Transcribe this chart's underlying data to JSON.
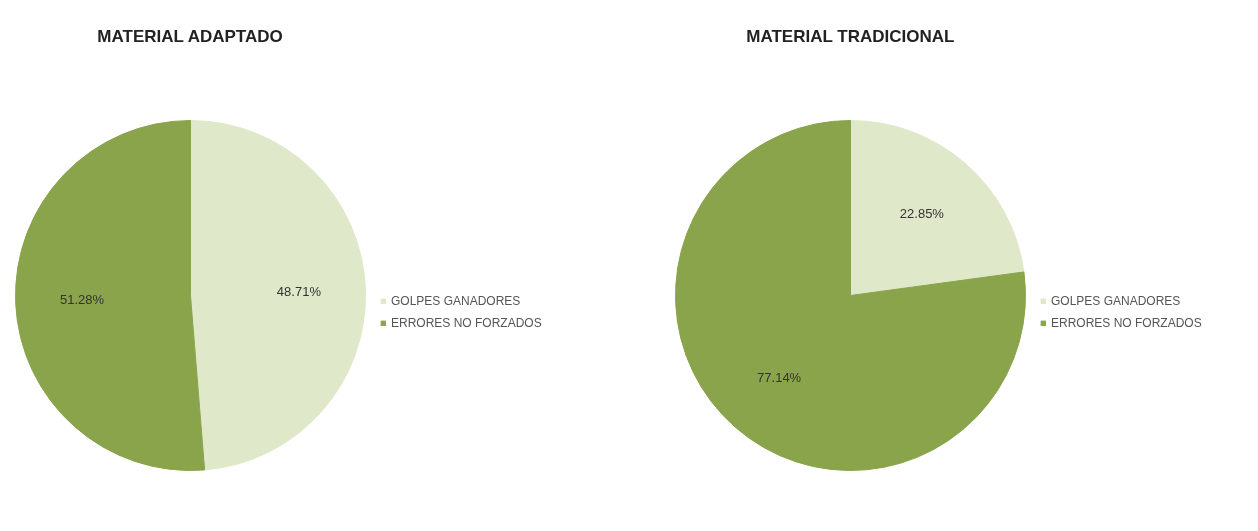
{
  "chart_data": [
    {
      "type": "pie",
      "title": "MATERIAL ADAPTADO",
      "categories": [
        "GOLPES GANADORES",
        "ERRORES NO FORZADOS"
      ],
      "values": [
        48.71,
        51.28
      ],
      "colors": [
        "#dfe8c8",
        "#8aa44c"
      ],
      "value_labels": [
        "48.71%",
        "51.28%"
      ],
      "data_labels": true,
      "legend": "right"
    },
    {
      "type": "pie",
      "title": "MATERIAL TRADICIONAL",
      "categories": [
        "GOLPES GANADORES",
        "ERRORES NO FORZADOS"
      ],
      "values": [
        22.85,
        77.14
      ],
      "colors": [
        "#dfe8c8",
        "#8aa44c"
      ],
      "value_labels": [
        "22.85%",
        "77.14%"
      ],
      "data_labels": true,
      "legend": "right"
    }
  ]
}
